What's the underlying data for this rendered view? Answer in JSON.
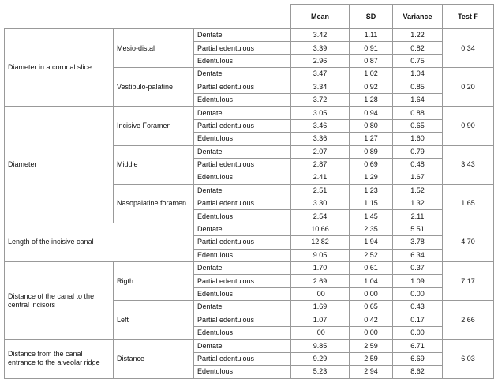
{
  "header": {
    "columns": [
      "Mean",
      "SD",
      "Variance",
      "Test F"
    ]
  },
  "groups": [
    {
      "label": "Diameter in a coronal slice",
      "subgroups": [
        {
          "label": "Mesio-distal",
          "test_f": "0.34",
          "rows": [
            {
              "condition": "Dentate",
              "mean": "3.42",
              "sd": "1.11",
              "variance": "1.22"
            },
            {
              "condition": "Partial edentulous",
              "mean": "3.39",
              "sd": "0.91",
              "variance": "0.82"
            },
            {
              "condition": "Edentulous",
              "mean": "2.96",
              "sd": "0.87",
              "variance": "0.75"
            }
          ]
        },
        {
          "label": "Vestibulo-palatine",
          "test_f": "0.20",
          "rows": [
            {
              "condition": "Dentate",
              "mean": "3.47",
              "sd": "1.02",
              "variance": "1.04"
            },
            {
              "condition": "Partial edentulous",
              "mean": "3.34",
              "sd": "0.92",
              "variance": "0.85"
            },
            {
              "condition": "Edentulous",
              "mean": "3.72",
              "sd": "1.28",
              "variance": "1.64"
            }
          ]
        }
      ]
    },
    {
      "label": "Diameter",
      "subgroups": [
        {
          "label": "Incisive Foramen",
          "test_f": "0.90",
          "rows": [
            {
              "condition": "Dentate",
              "mean": "3.05",
              "sd": "0.94",
              "variance": "0.88"
            },
            {
              "condition": "Partial edentulous",
              "mean": "3.46",
              "sd": "0.80",
              "variance": "0.65"
            },
            {
              "condition": "Edentulous",
              "mean": "3.36",
              "sd": "1.27",
              "variance": "1.60"
            }
          ]
        },
        {
          "label": "Middle",
          "test_f": "3.43",
          "rows": [
            {
              "condition": "Dentate",
              "mean": "2.07",
              "sd": "0.89",
              "variance": "0.79"
            },
            {
              "condition": "Partial edentulous",
              "mean": "2.87",
              "sd": "0.69",
              "variance": "0.48"
            },
            {
              "condition": "Edentulous",
              "mean": "2.41",
              "sd": "1.29",
              "variance": "1.67"
            }
          ]
        },
        {
          "label": "Nasopalatine foramen",
          "test_f": "1.65",
          "rows": [
            {
              "condition": "Dentate",
              "mean": "2.51",
              "sd": "1.23",
              "variance": "1.52"
            },
            {
              "condition": "Partial edentulous",
              "mean": "3.30",
              "sd": "1.15",
              "variance": "1.32"
            },
            {
              "condition": "Edentulous",
              "mean": "2.54",
              "sd": "1.45",
              "variance": "2.11"
            }
          ]
        }
      ]
    },
    {
      "label": "Length of the incisive canal",
      "subgroups": [
        {
          "test_f": "4.70",
          "rows": [
            {
              "condition": "Dentate",
              "mean": "10.66",
              "sd": "2.35",
              "variance": "5.51"
            },
            {
              "condition": "Partial edentulous",
              "mean": "12.82",
              "sd": "1.94",
              "variance": "3.78"
            },
            {
              "condition": "Edentulous",
              "mean": "9.05",
              "sd": "2.52",
              "variance": "6.34"
            }
          ]
        }
      ]
    },
    {
      "label": "Distance of the canal to the central incisors",
      "subgroups": [
        {
          "label": "Rigth",
          "test_f": "7.17",
          "rows": [
            {
              "condition": "Dentate",
              "mean": "1.70",
              "sd": "0.61",
              "variance": "0.37"
            },
            {
              "condition": "Partial edentulous",
              "mean": "2.69",
              "sd": "1.04",
              "variance": "1.09"
            },
            {
              "condition": "Edentulous",
              "mean": ".00",
              "sd": "0.00",
              "variance": "0.00"
            }
          ]
        },
        {
          "label": "Left",
          "test_f": "2.66",
          "rows": [
            {
              "condition": "Dentate",
              "mean": "1.69",
              "sd": "0.65",
              "variance": "0.43"
            },
            {
              "condition": "Partial edentulous",
              "mean": "1.07",
              "sd": "0.42",
              "variance": "0.17"
            },
            {
              "condition": "Edentulous",
              "mean": ".00",
              "sd": "0.00",
              "variance": "0.00"
            }
          ]
        }
      ]
    },
    {
      "label": "Distance from the canal entrance to the alveolar ridge",
      "subgroups": [
        {
          "label": "Distance",
          "test_f": "6.03",
          "rows": [
            {
              "condition": "Dentate",
              "mean": "9.85",
              "sd": "2.59",
              "variance": "6.71"
            },
            {
              "condition": "Partial edentulous",
              "mean": "9.29",
              "sd": "2.59",
              "variance": "6.69"
            },
            {
              "condition": "Edentulous",
              "mean": "5.23",
              "sd": "2.94",
              "variance": "8.62"
            }
          ]
        }
      ]
    }
  ]
}
